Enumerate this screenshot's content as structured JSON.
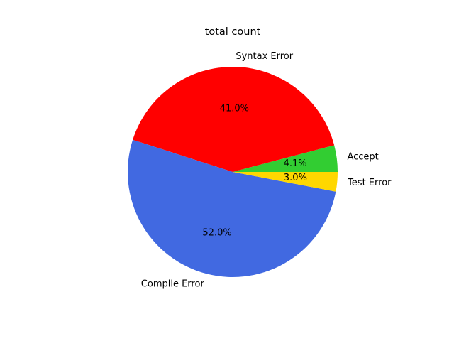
{
  "chart_data": {
    "type": "pie",
    "title": "total count",
    "labels": [
      "Accept",
      "Syntax Error",
      "Compile Error",
      "Test Error"
    ],
    "values": [
      4.1,
      41.0,
      52.0,
      3.0
    ],
    "percent_labels": [
      "4.1%",
      "41.0%",
      "52.0%",
      "3.0%"
    ],
    "colors": [
      "#32cd32",
      "#ff0000",
      "#4169e1",
      "#ffd700"
    ],
    "start_angle_deg": 0,
    "direction": "counterclockwise",
    "legend": "none"
  }
}
